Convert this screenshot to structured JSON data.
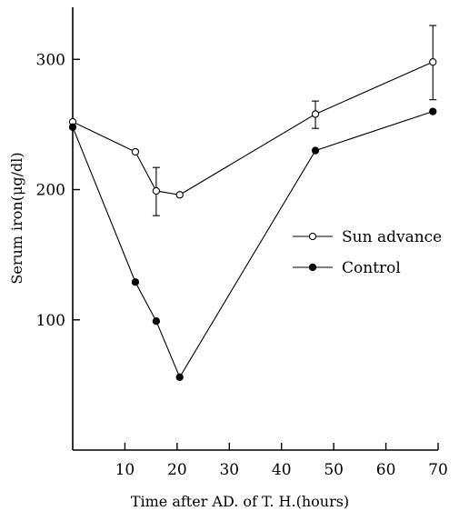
{
  "chart_data": {
    "type": "line",
    "title": "",
    "xlabel": "Time after AD. of T. H.(hours)",
    "ylabel": "Serum iron(μg/dl)",
    "xlim": [
      0,
      70
    ],
    "ylim": [
      0,
      340
    ],
    "x_ticks": [
      10,
      20,
      30,
      40,
      50,
      60,
      70
    ],
    "x_tick_labels": [
      "10",
      "20",
      "30",
      "40",
      "50",
      "60",
      "70"
    ],
    "y_ticks": [
      100,
      200,
      300
    ],
    "y_tick_labels": [
      "100",
      "200",
      "300"
    ],
    "grid": false,
    "legend_position": "right",
    "series": [
      {
        "name": "Sun advance",
        "marker": "open-circle",
        "color": "#000000",
        "x": [
          0,
          12,
          16,
          20.5,
          46.5,
          69
        ],
        "y": [
          252,
          229,
          199,
          196,
          258,
          298
        ],
        "error_bars": [
          {
            "x": 16,
            "low": 180,
            "high": 217
          },
          {
            "x": 46.5,
            "low": 247,
            "high": 268
          },
          {
            "x": 69,
            "low": 269,
            "high": 326
          }
        ]
      },
      {
        "name": "Control",
        "marker": "filled-circle",
        "color": "#000000",
        "x": [
          0,
          12,
          16,
          20.5,
          46.5,
          69
        ],
        "y": [
          248,
          129,
          99,
          56,
          230,
          260
        ]
      }
    ]
  }
}
